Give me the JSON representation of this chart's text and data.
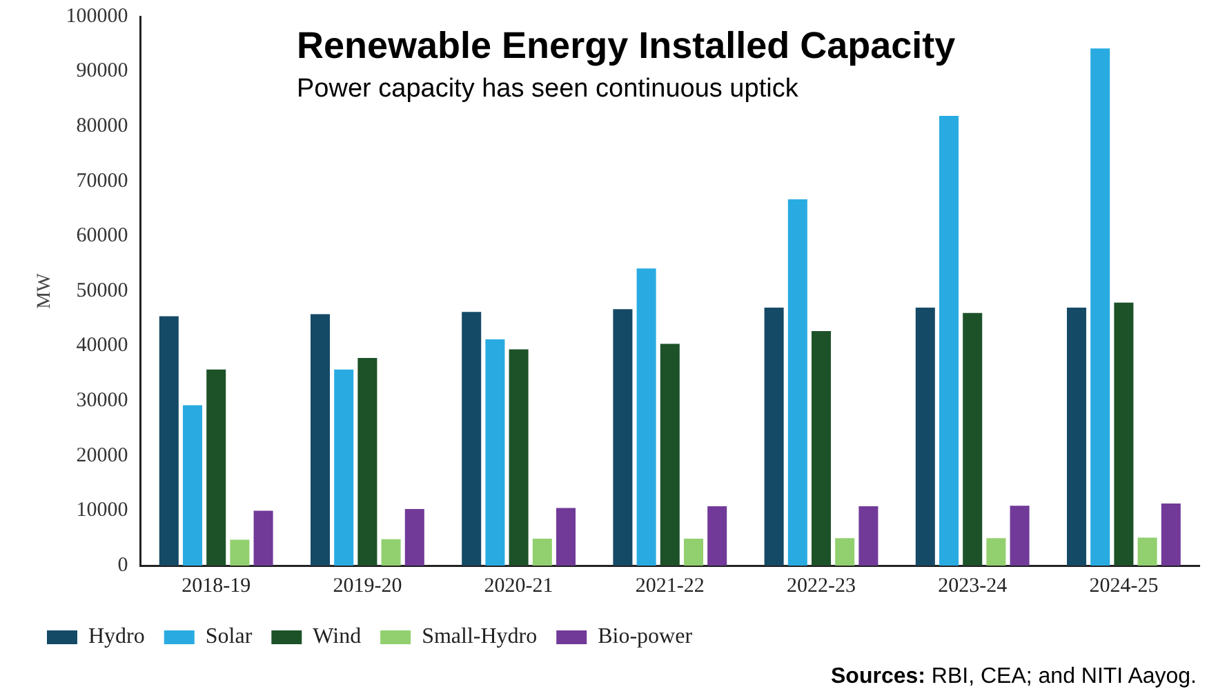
{
  "chart_data": {
    "type": "bar",
    "title": "Renewable Energy Installed Capacity",
    "subtitle": "Power capacity has seen continuous uptick",
    "ylabel": "MW",
    "categories": [
      "2018-19",
      "2019-20",
      "2020-21",
      "2021-22",
      "2022-23",
      "2023-24",
      "2024-25"
    ],
    "series": [
      {
        "name": "Hydro",
        "color": "#154a66",
        "values": [
          45400,
          45800,
          46200,
          46700,
          47000,
          47000,
          47000
        ]
      },
      {
        "name": "Solar",
        "color": "#29abe2",
        "values": [
          29200,
          35700,
          41200,
          54100,
          66700,
          81900,
          94200
        ]
      },
      {
        "name": "Wind",
        "color": "#1d5229",
        "values": [
          35700,
          37800,
          39400,
          40400,
          42700,
          46000,
          47900
        ]
      },
      {
        "name": "Small-Hydro",
        "color": "#92d06f",
        "values": [
          4700,
          4800,
          4900,
          4900,
          5000,
          5000,
          5100
        ]
      },
      {
        "name": "Bio-power",
        "color": "#713a99",
        "values": [
          10000,
          10300,
          10500,
          10800,
          10800,
          10900,
          11300
        ]
      }
    ],
    "ylim": [
      0,
      100000
    ],
    "yticks": [
      0,
      10000,
      20000,
      30000,
      40000,
      50000,
      60000,
      70000,
      80000,
      90000,
      100000
    ],
    "grid": false,
    "legend": "bottom",
    "annotations": [
      "Sources: RBI, CEA; and NITI Aayog."
    ]
  }
}
